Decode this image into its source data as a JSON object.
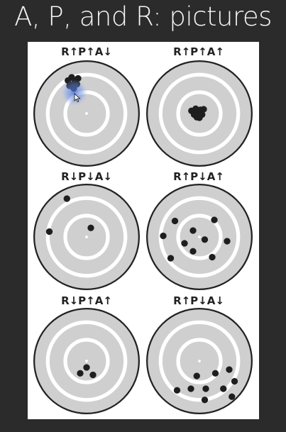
{
  "slide": {
    "title": "A, P, and R: pictures"
  },
  "targets": [
    {
      "label": "R↑P↑A↓",
      "shots": [
        [
          -0.35,
          -0.62
        ],
        [
          -0.28,
          -0.68
        ],
        [
          -0.22,
          -0.62
        ],
        [
          -0.16,
          -0.66
        ],
        [
          -0.25,
          -0.55
        ],
        [
          -0.32,
          -0.52
        ],
        [
          -0.18,
          -0.55
        ],
        [
          -0.24,
          -0.47
        ]
      ]
    },
    {
      "label": "R↑P↑A↑",
      "shots": [
        [
          -0.15,
          -0.05
        ],
        [
          -0.07,
          -0.09
        ],
        [
          0.02,
          -0.07
        ],
        [
          0.08,
          -0.08
        ],
        [
          -0.1,
          0.02
        ],
        [
          -0.02,
          0.0
        ],
        [
          0.05,
          0.02
        ],
        [
          -0.05,
          0.07
        ],
        [
          0.0,
          0.08
        ]
      ]
    },
    {
      "label": "R↓P↓A↓",
      "shots": [
        [
          -0.37,
          -0.72
        ],
        [
          -0.7,
          -0.1
        ],
        [
          0.08,
          -0.17
        ]
      ]
    },
    {
      "label": "R↑P↓A↑",
      "shots": [
        [
          -0.46,
          -0.3
        ],
        [
          -0.68,
          -0.02
        ],
        [
          -0.12,
          -0.12
        ],
        [
          0.28,
          -0.32
        ],
        [
          0.52,
          0.08
        ],
        [
          -0.28,
          0.12
        ],
        [
          0.1,
          0.05
        ],
        [
          -0.12,
          0.27
        ],
        [
          -0.54,
          0.4
        ],
        [
          0.24,
          0.38
        ]
      ]
    },
    {
      "label": "R↓P↑A↑",
      "shots": [
        [
          0.0,
          0.12
        ],
        [
          -0.12,
          0.23
        ],
        [
          0.12,
          0.26
        ]
      ]
    },
    {
      "label": "R↑P↓A↓",
      "shots": [
        [
          0.56,
          0.16
        ],
        [
          -0.05,
          0.28
        ],
        [
          0.3,
          0.23
        ],
        [
          0.66,
          0.38
        ],
        [
          -0.16,
          0.52
        ],
        [
          0.45,
          0.52
        ],
        [
          0.12,
          0.52
        ],
        [
          -0.42,
          0.55
        ],
        [
          0.61,
          0.67
        ],
        [
          0.1,
          0.73
        ]
      ]
    }
  ]
}
